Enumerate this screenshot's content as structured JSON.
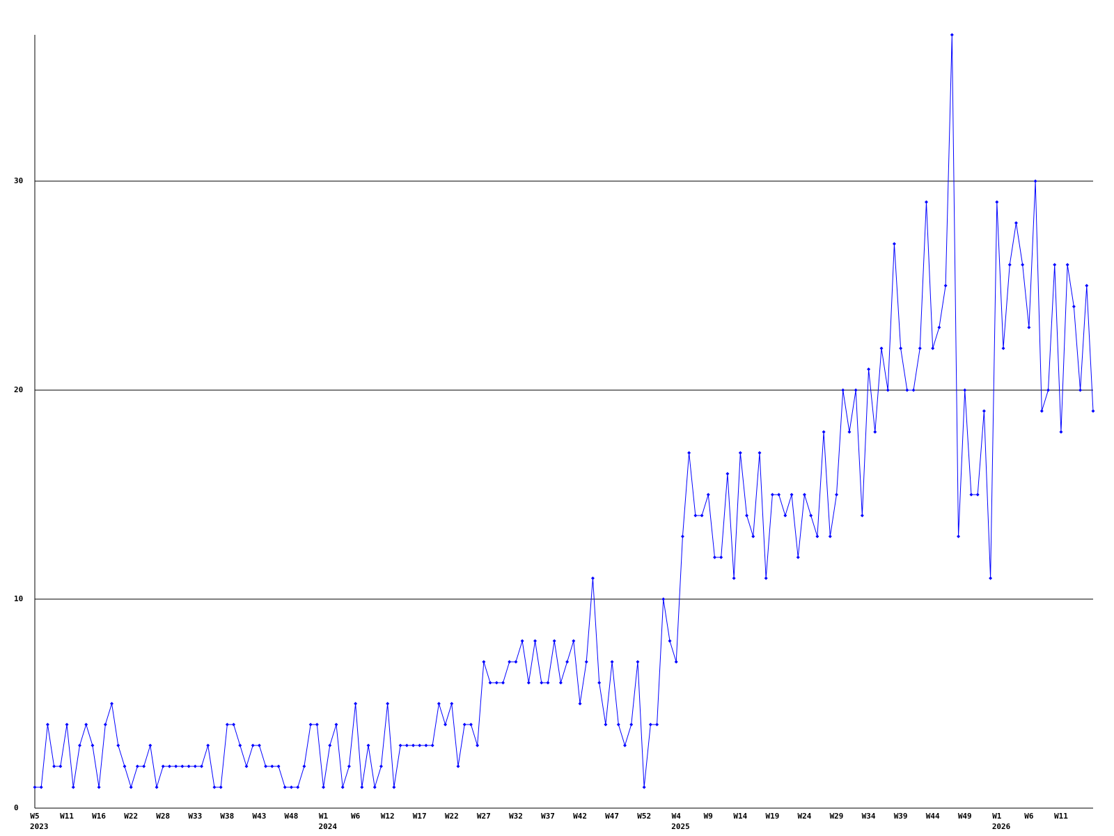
{
  "chart_data": {
    "type": "line",
    "categories": [
      "W5",
      null,
      null,
      null,
      null,
      "W11",
      null,
      null,
      null,
      null,
      "W16",
      null,
      null,
      null,
      null,
      "W22",
      null,
      null,
      null,
      null,
      "W28",
      null,
      null,
      null,
      null,
      "W33",
      null,
      null,
      null,
      null,
      "W38",
      null,
      null,
      null,
      null,
      "W43",
      null,
      null,
      null,
      null,
      "W48",
      null,
      null,
      null,
      null,
      "W1",
      null,
      null,
      null,
      null,
      "W6",
      null,
      null,
      null,
      null,
      "W12",
      null,
      null,
      null,
      null,
      "W17",
      null,
      null,
      null,
      null,
      "W22",
      null,
      null,
      null,
      null,
      "W27",
      null,
      null,
      null,
      null,
      "W32",
      null,
      null,
      null,
      null,
      "W37",
      null,
      null,
      null,
      null,
      "W42",
      null,
      null,
      null,
      null,
      "W47",
      null,
      null,
      null,
      null,
      "W52",
      null,
      null,
      null,
      null,
      "W4",
      null,
      null,
      null,
      null,
      "W9",
      null,
      null,
      null,
      null,
      "W14",
      null,
      null,
      null,
      null,
      "W19",
      null,
      null,
      null,
      null,
      "W24",
      null,
      null,
      null,
      null,
      "W29",
      null,
      null,
      null,
      null,
      "W34",
      null,
      null,
      null,
      null,
      "W39",
      null,
      null,
      null,
      null,
      "W44",
      null,
      null,
      null,
      null,
      "W49",
      null,
      null,
      null,
      null,
      "W1",
      null,
      null,
      null,
      null,
      "W6",
      null,
      null,
      null,
      null,
      "W11",
      null,
      null,
      null,
      null,
      null
    ],
    "category_years": [
      "2023",
      null,
      null,
      null,
      null,
      null,
      null,
      null,
      null,
      null,
      null,
      null,
      null,
      null,
      null,
      null,
      null,
      null,
      null,
      null,
      null,
      null,
      null,
      null,
      null,
      null,
      null,
      null,
      null,
      null,
      null,
      null,
      null,
      null,
      null,
      null,
      null,
      null,
      null,
      null,
      null,
      null,
      null,
      null,
      null,
      "2024",
      null,
      null,
      null,
      null,
      null,
      null,
      null,
      null,
      null,
      null,
      null,
      null,
      null,
      null,
      null,
      null,
      null,
      null,
      null,
      null,
      null,
      null,
      null,
      null,
      null,
      null,
      null,
      null,
      null,
      null,
      null,
      null,
      null,
      null,
      null,
      null,
      null,
      null,
      null,
      null,
      null,
      null,
      null,
      null,
      null,
      null,
      null,
      null,
      null,
      null,
      null,
      null,
      null,
      null,
      "2025",
      null,
      null,
      null,
      null,
      null,
      null,
      null,
      null,
      null,
      null,
      null,
      null,
      null,
      null,
      null,
      null,
      null,
      null,
      null,
      null,
      null,
      null,
      null,
      null,
      null,
      null,
      null,
      null,
      null,
      null,
      null,
      null,
      null,
      null,
      null,
      null,
      null,
      null,
      null,
      null,
      null,
      null,
      null,
      null,
      null,
      null,
      null,
      null,
      null,
      "2026",
      null,
      null,
      null,
      null,
      null,
      null,
      null,
      null,
      null,
      null,
      null,
      null,
      null,
      null,
      null
    ],
    "series": [
      {
        "color": "#0000ff",
        "values": [
          1,
          1,
          4,
          2,
          2,
          4,
          1,
          3,
          4,
          3,
          1,
          4,
          5,
          3,
          2,
          1,
          2,
          2,
          3,
          1,
          2,
          2,
          2,
          2,
          2,
          2,
          2,
          3,
          1,
          1,
          4,
          4,
          3,
          2,
          3,
          3,
          2,
          2,
          2,
          1,
          1,
          1,
          2,
          4,
          4,
          1,
          3,
          4,
          1,
          2,
          5,
          1,
          3,
          1,
          2,
          5,
          1,
          3,
          3,
          3,
          3,
          3,
          3,
          5,
          4,
          5,
          2,
          4,
          4,
          3,
          7,
          6,
          6,
          6,
          7,
          7,
          8,
          6,
          8,
          6,
          6,
          8,
          6,
          7,
          8,
          5,
          7,
          11,
          6,
          4,
          7,
          4,
          3,
          4,
          7,
          1,
          4,
          4,
          10,
          8,
          7,
          13,
          17,
          14,
          14,
          15,
          12,
          12,
          16,
          11,
          17,
          14,
          13,
          17,
          11,
          15,
          15,
          14,
          15,
          12,
          15,
          14,
          13,
          18,
          13,
          15,
          20,
          18,
          20,
          14,
          21,
          18,
          22,
          20,
          27,
          22,
          20,
          20,
          22,
          29,
          22,
          23,
          25,
          37,
          13,
          20,
          15,
          15,
          19,
          11,
          29,
          22,
          26,
          28,
          26,
          23,
          30,
          19,
          20,
          26,
          18,
          26,
          24,
          20,
          25,
          19
        ]
      }
    ],
    "ylim": [
      0,
      37
    ],
    "yticks": [
      0,
      10,
      20,
      30
    ],
    "grid": true
  }
}
